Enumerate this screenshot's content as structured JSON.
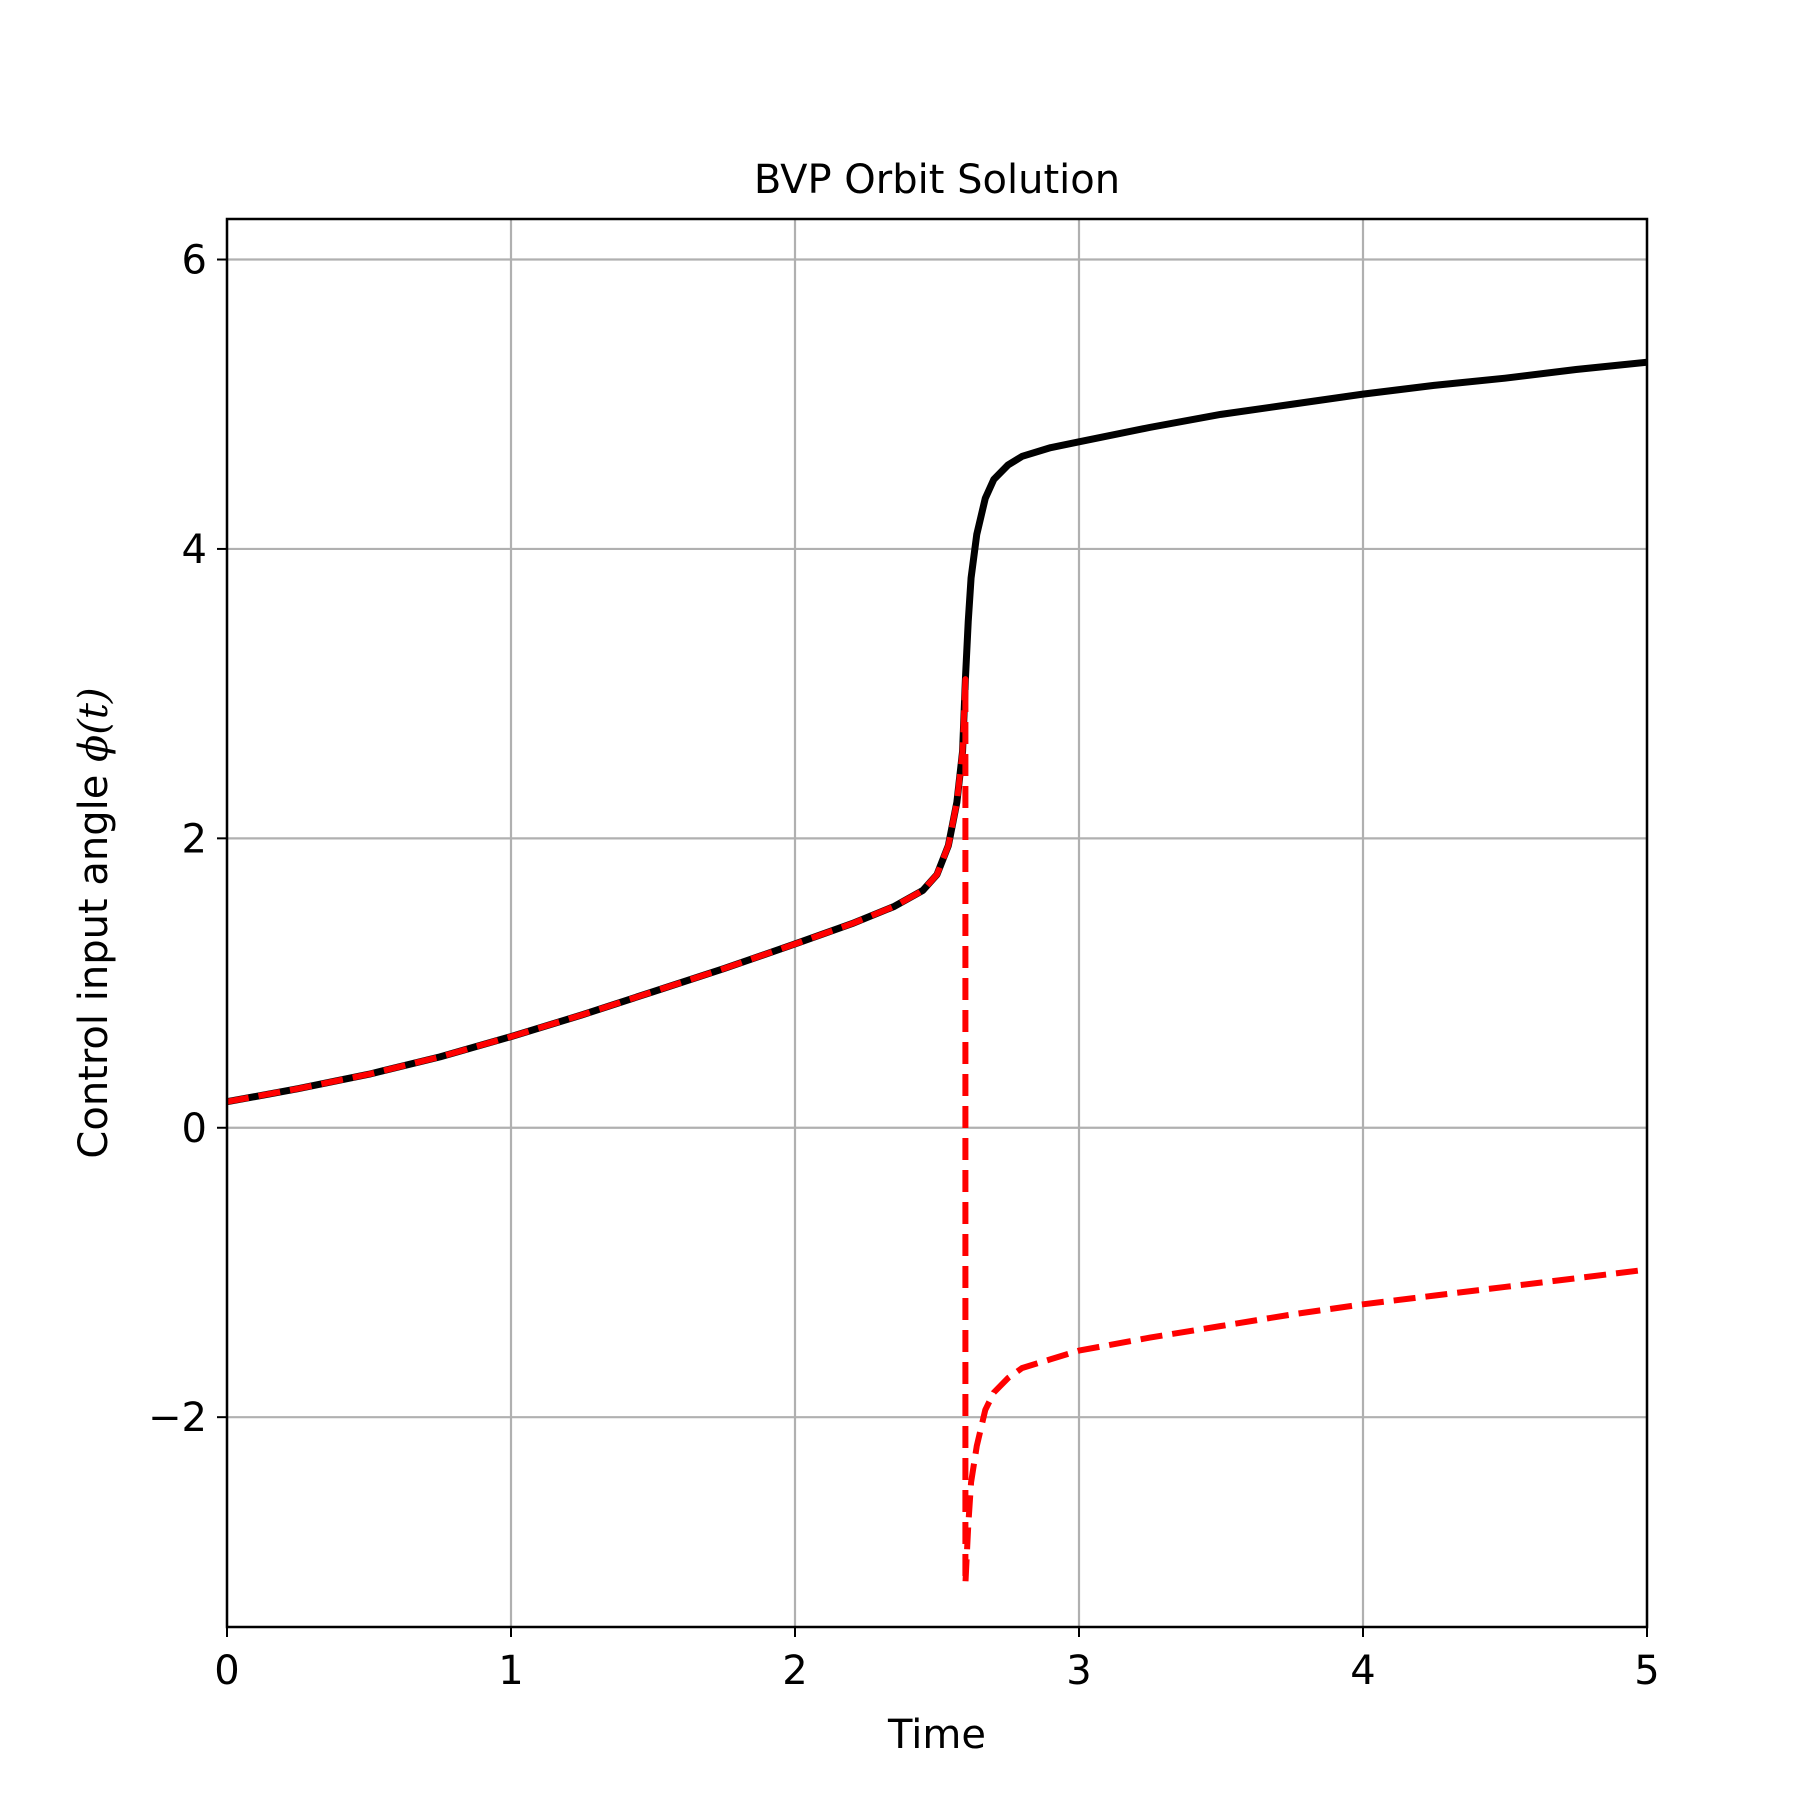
{
  "chart_data": {
    "type": "line",
    "title": "BVP Orbit Solution",
    "xlabel": "Time",
    "ylabel_text": "Control input angle ",
    "ylabel_math": "ϕ(t)",
    "xlim": [
      0,
      5
    ],
    "ylim": [
      -3.45,
      6.28
    ],
    "xticks": [
      0,
      1,
      2,
      3,
      4,
      5
    ],
    "xtick_labels": [
      "0",
      "1",
      "2",
      "3",
      "4",
      "5"
    ],
    "yticks": [
      -2,
      0,
      2,
      4,
      6
    ],
    "ytick_labels": [
      "−2",
      "0",
      "2",
      "4",
      "6"
    ],
    "grid": true,
    "series": [
      {
        "color": "#000000",
        "linestyle": "solid",
        "x": [
          0,
          0.25,
          0.5,
          0.75,
          1.0,
          1.25,
          1.5,
          1.75,
          2.0,
          2.2,
          2.35,
          2.45,
          2.5,
          2.54,
          2.57,
          2.59,
          2.6,
          2.61,
          2.62,
          2.64,
          2.67,
          2.7,
          2.75,
          2.8,
          2.9,
          3.0,
          3.25,
          3.5,
          3.75,
          4.0,
          4.25,
          4.5,
          4.75,
          5.0
        ],
        "y": [
          0.18,
          0.27,
          0.37,
          0.49,
          0.63,
          0.78,
          0.94,
          1.1,
          1.27,
          1.41,
          1.53,
          1.64,
          1.75,
          1.95,
          2.25,
          2.6,
          3.1,
          3.5,
          3.8,
          4.1,
          4.35,
          4.48,
          4.58,
          4.64,
          4.7,
          4.74,
          4.84,
          4.93,
          5.0,
          5.07,
          5.13,
          5.18,
          5.24,
          5.29
        ]
      },
      {
        "color": "#ff0000",
        "linestyle": "dashed",
        "x": [
          0,
          0.25,
          0.5,
          0.75,
          1.0,
          1.25,
          1.5,
          1.75,
          2.0,
          2.2,
          2.35,
          2.45,
          2.5,
          2.54,
          2.57,
          2.59,
          2.6,
          2.6,
          2.61,
          2.62,
          2.64,
          2.67,
          2.7,
          2.75,
          2.8,
          2.9,
          3.0,
          3.25,
          3.5,
          3.75,
          4.0,
          4.25,
          4.5,
          4.75,
          5.0
        ],
        "y": [
          0.18,
          0.27,
          0.37,
          0.49,
          0.63,
          0.78,
          0.94,
          1.1,
          1.27,
          1.41,
          1.53,
          1.64,
          1.75,
          1.95,
          2.25,
          2.6,
          3.1,
          -3.15,
          -2.75,
          -2.45,
          -2.2,
          -1.95,
          -1.83,
          -1.73,
          -1.66,
          -1.6,
          -1.54,
          -1.45,
          -1.37,
          -1.29,
          -1.22,
          -1.16,
          -1.1,
          -1.04,
          -0.98
        ]
      }
    ]
  }
}
